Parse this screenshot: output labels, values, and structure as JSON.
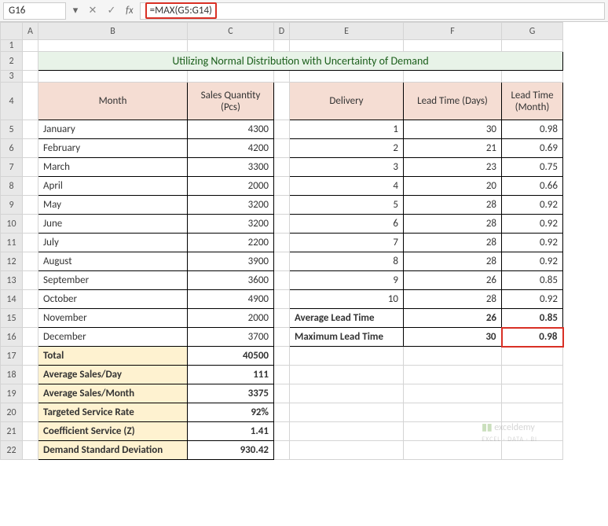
{
  "nameBox": "G16",
  "formula": "=MAX(G5:G14)",
  "fxLabel": "fx",
  "columns": [
    "A",
    "B",
    "C",
    "D",
    "E",
    "F",
    "G"
  ],
  "rows": [
    "1",
    "2",
    "3",
    "4",
    "5",
    "6",
    "7",
    "8",
    "9",
    "10",
    "11",
    "12",
    "13",
    "14",
    "15",
    "16",
    "17",
    "18",
    "19",
    "20",
    "21",
    "22"
  ],
  "title": "Utilizing Normal Distribution with Uncertainty of Demand",
  "headers": {
    "month": "Month",
    "salesQty": "Sales Quantity (Pcs)",
    "delivery": "Delivery",
    "leadDays": "Lead Time (Days)",
    "leadMonth": "Lead Time (Month)"
  },
  "months": [
    "January",
    "February",
    "March",
    "April",
    "May",
    "June",
    "July",
    "August",
    "September",
    "October",
    "November",
    "December"
  ],
  "sales": [
    "4300",
    "4200",
    "3300",
    "2000",
    "3200",
    "3200",
    "2200",
    "3900",
    "3600",
    "4900",
    "2000",
    "3700"
  ],
  "delivery": [
    "1",
    "2",
    "3",
    "4",
    "5",
    "6",
    "7",
    "8",
    "9",
    "10"
  ],
  "leadDays": [
    "30",
    "21",
    "23",
    "20",
    "28",
    "28",
    "28",
    "28",
    "26",
    "28"
  ],
  "leadMonth": [
    "0.98",
    "0.69",
    "0.75",
    "0.66",
    "0.92",
    "0.92",
    "0.92",
    "0.92",
    "0.85",
    "0.92"
  ],
  "summary": {
    "avgLead": "Average Lead Time",
    "avgLeadDays": "26",
    "avgLeadMonth": "0.85",
    "maxLead": "Maximum Lead Time",
    "maxLeadDays": "30",
    "maxLeadMonth": "0.98",
    "total": "Total",
    "totalVal": "40500",
    "avgDay": "Average Sales/Day",
    "avgDayVal": "111",
    "avgMonth": "Average Sales/Month",
    "avgMonthVal": "3375",
    "target": "Targeted Service Rate",
    "targetVal": "92%",
    "coef": "Coefficient Service (Z)",
    "coefVal": "1.41",
    "stddev": "Demand Standard Deviation",
    "stddevVal": "930.42"
  },
  "watermark": {
    "brand": "exceldemy",
    "tagline": "EXCEL · DATA · BI"
  }
}
